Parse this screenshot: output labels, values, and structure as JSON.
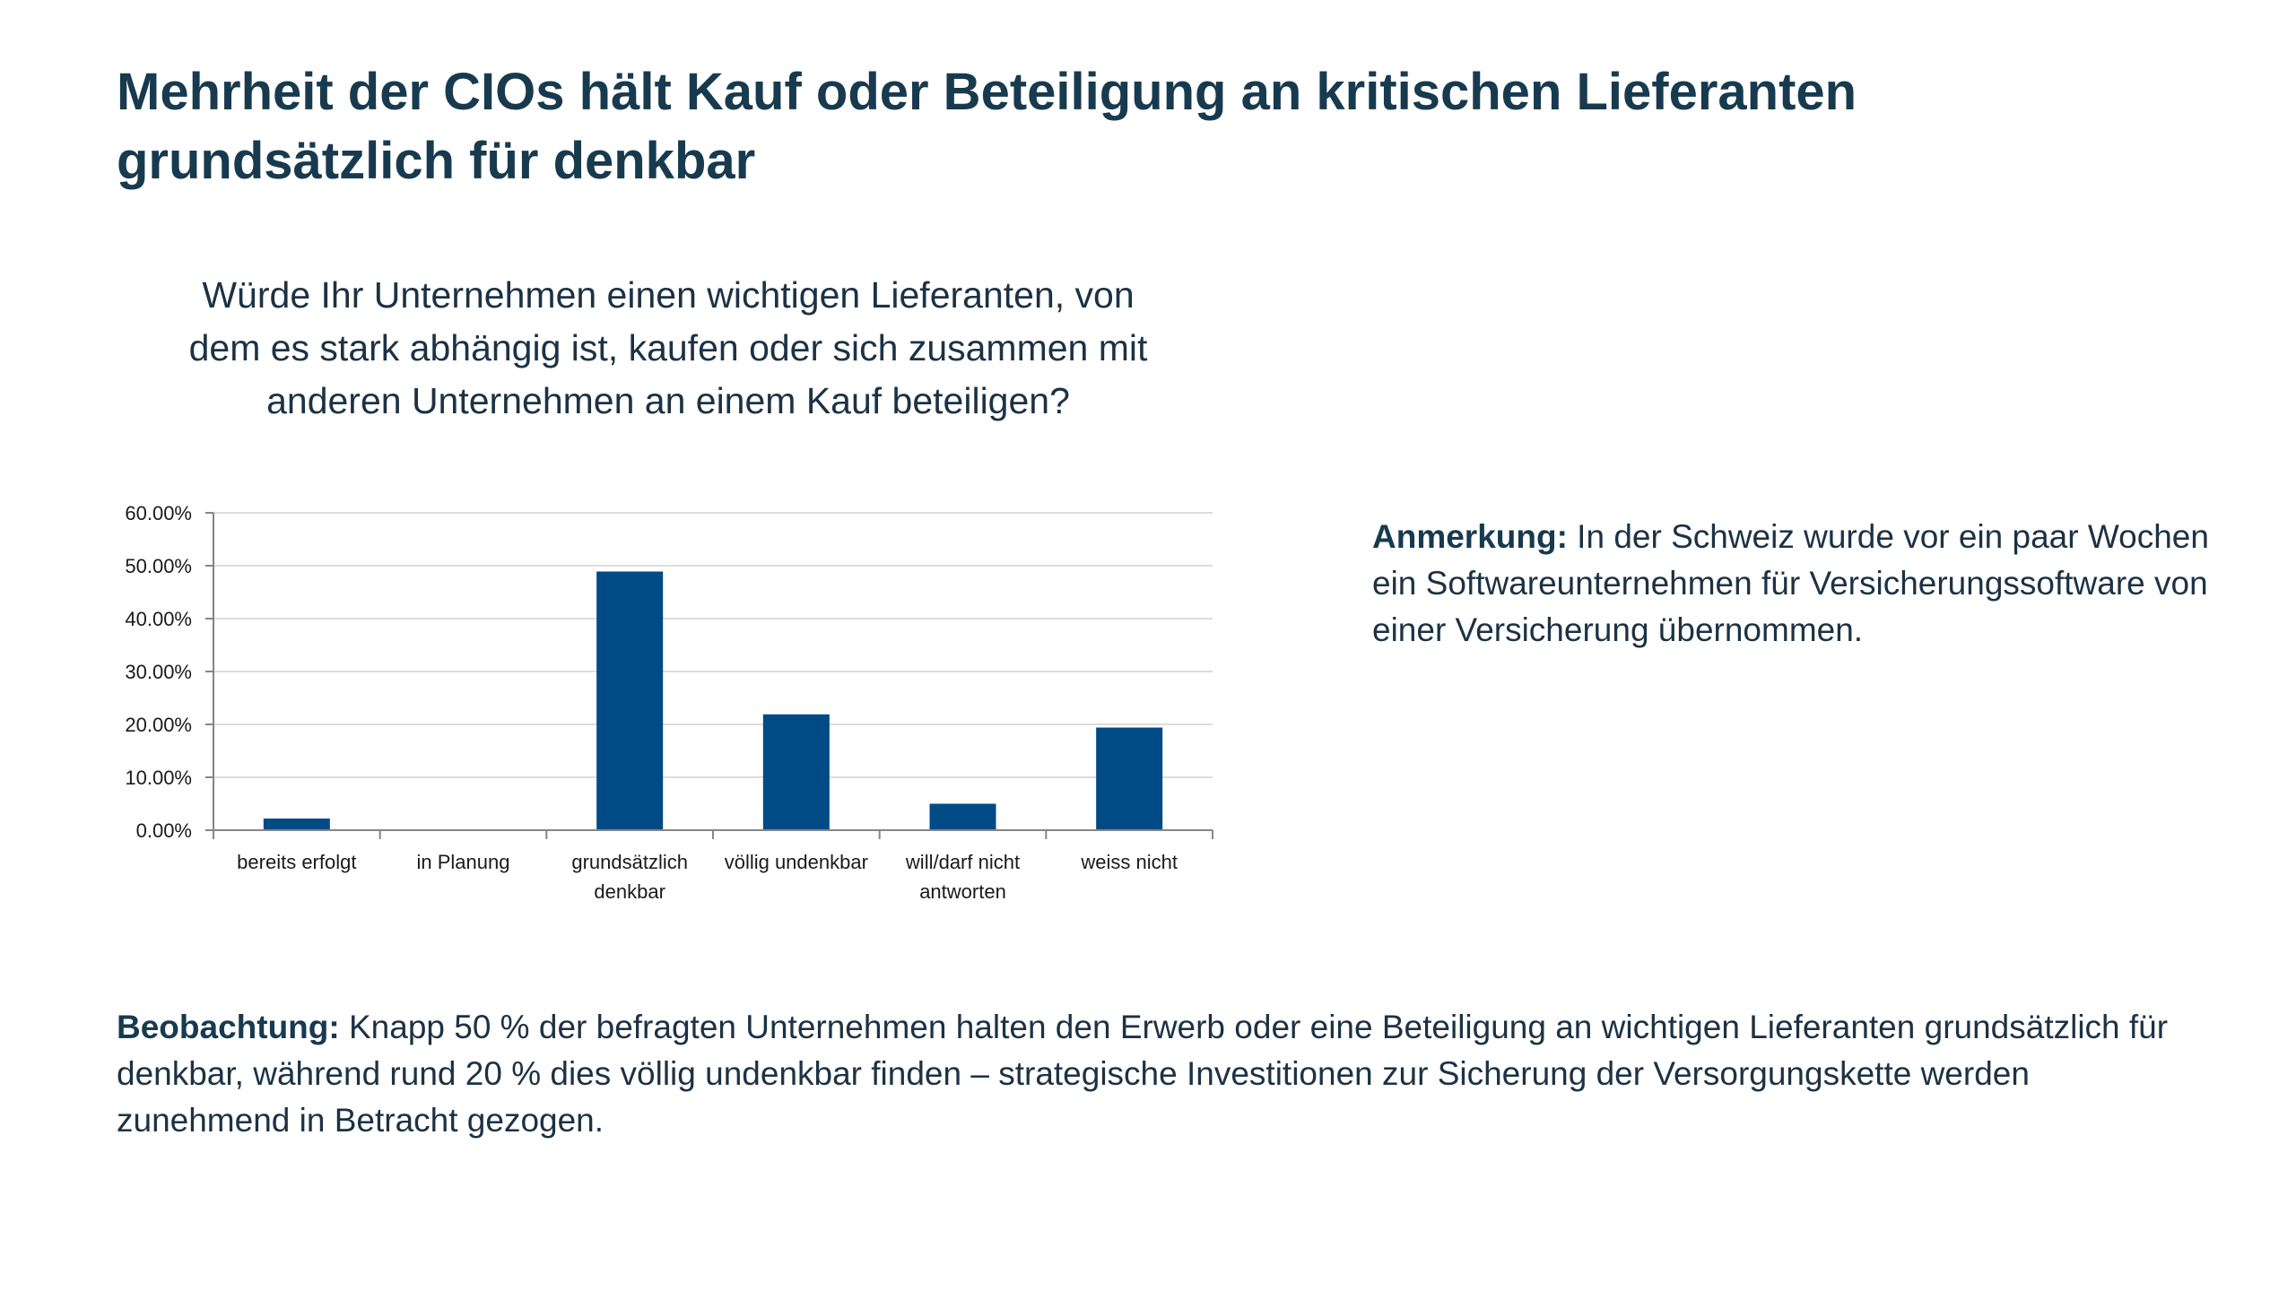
{
  "slide": {
    "title": "Mehrheit der CIOs hält Kauf oder Beteiligung an kritischen Lieferanten grundsätzlich für denkbar"
  },
  "note": {
    "lead": "Anmerkung:",
    "text": " In der Schweiz wurde vor ein paar Wochen ein Softwareunternehmen für Versicherungssoftware von einer Versicherung übernommen."
  },
  "observation": {
    "lead": "Beobachtung:",
    "text": " Knapp 50 % der befragten Unternehmen halten den Erwerb oder eine Beteiligung an wichtigen Lieferanten grundsätzlich für denkbar, während rund 20 % dies völlig undenkbar finden – strategische Investitionen zur Sicherung der Versorgungskette werden zunehmend in Betracht gezogen."
  },
  "chart_data": {
    "type": "bar",
    "title": "Würde Ihr Unternehmen einen wichtigen Lieferanten, von dem es stark abhängig ist, kaufen oder sich zusammen mit anderen Unternehmen an einem Kauf beteiligen?",
    "categories": [
      "bereits erfolgt",
      "in Planung",
      "grundsätzlich denkbar",
      "völlig undenkbar",
      "will/darf nicht antworten",
      "weiss nicht"
    ],
    "category_lines": [
      [
        "bereits erfolgt"
      ],
      [
        "in Planung"
      ],
      [
        "grundsätzlich",
        "denkbar"
      ],
      [
        "völlig undenkbar"
      ],
      [
        "will/darf nicht",
        "antworten"
      ],
      [
        "weiss nicht"
      ]
    ],
    "values": [
      2.2,
      0,
      48.9,
      21.9,
      5.0,
      19.4
    ],
    "ylim": [
      0,
      60
    ],
    "yticks": [
      0,
      10,
      20,
      30,
      40,
      50,
      60
    ],
    "ytick_labels": [
      "0.00%",
      "10.00%",
      "20.00%",
      "30.00%",
      "40.00%",
      "50.00%",
      "60.00%"
    ],
    "xlabel": "",
    "ylabel": "",
    "grid": true,
    "legend": "none",
    "bar_color": "#004a86",
    "grid_color": "#d0d0d0",
    "axis_color": "#868686",
    "tick_label_color": "#1a1a1a"
  }
}
